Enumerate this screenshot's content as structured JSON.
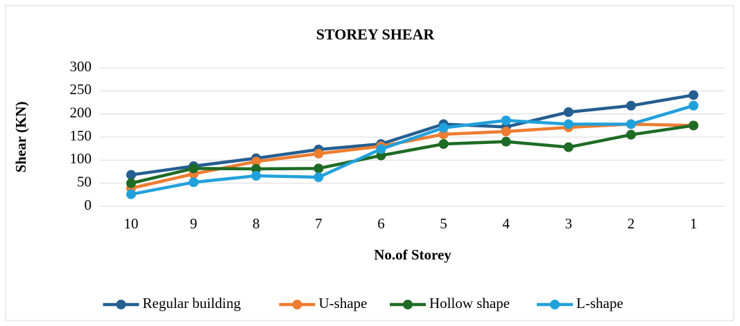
{
  "chart_data": {
    "type": "line",
    "title": "STOREY SHEAR",
    "x_label": "No.of Storey",
    "y_label": "Shear (KN)",
    "categories": [
      "10",
      "9",
      "8",
      "7",
      "6",
      "5",
      "4",
      "3",
      "2",
      "1"
    ],
    "series": [
      {
        "name": "Regular building",
        "color": "#255e91",
        "values": [
          68,
          87,
          104,
          123,
          135,
          178,
          172,
          204,
          218,
          241
        ]
      },
      {
        "name": "U-shape",
        "color": "#ed7d31",
        "values": [
          39,
          70,
          97,
          114,
          130,
          156,
          162,
          171,
          178,
          175
        ]
      },
      {
        "name": "Hollow shape",
        "color": "#1e6b25",
        "values": [
          50,
          82,
          81,
          82,
          110,
          135,
          140,
          128,
          155,
          175
        ]
      },
      {
        "name": "L-shape",
        "color": "#21a1db",
        "values": [
          26,
          52,
          66,
          63,
          124,
          170,
          186,
          178,
          178,
          218
        ]
      }
    ],
    "ylim": [
      0,
      300
    ],
    "yticks": [
      0,
      50,
      100,
      150,
      200,
      250,
      300
    ],
    "grid": true,
    "legend": "bottom"
  }
}
